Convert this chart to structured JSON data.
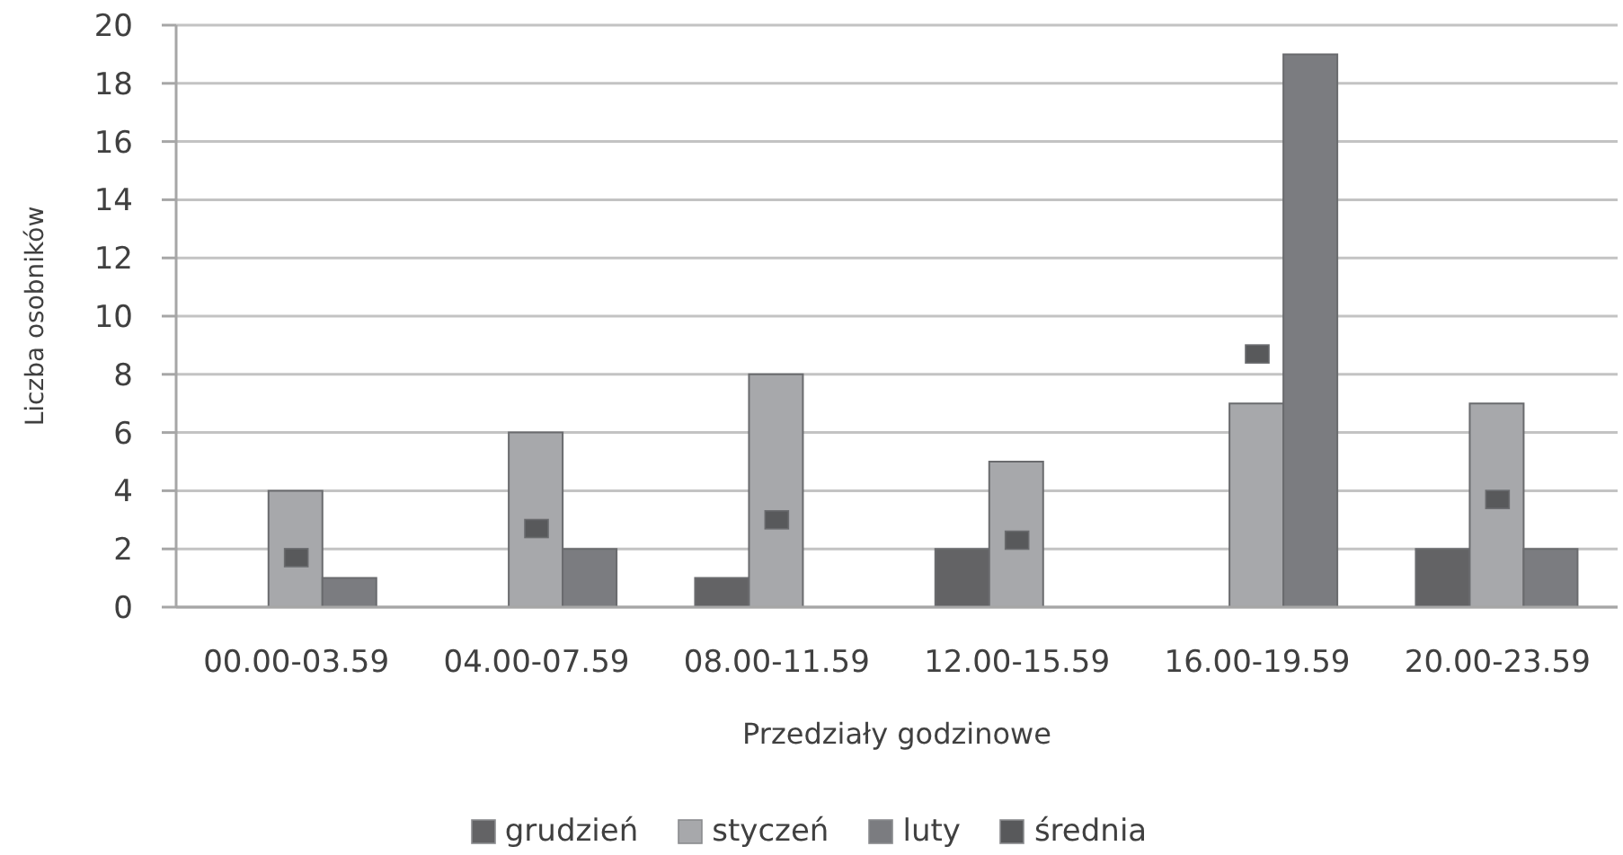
{
  "chart_data": {
    "type": "bar",
    "xlabel": "Przedziały godzinowe",
    "ylabel": "Liczba osobników",
    "categories": [
      "00.00-03.59",
      "04.00-07.59",
      "08.00-11.59",
      "12.00-15.59",
      "16.00-19.59",
      "20.00-23.59"
    ],
    "series": [
      {
        "name": "grudzień",
        "color": "#636365",
        "values": [
          0,
          0,
          1,
          2,
          0,
          2
        ]
      },
      {
        "name": "styczeń",
        "color": "#a7a8ab",
        "values": [
          4,
          6,
          8,
          5,
          7,
          7
        ]
      },
      {
        "name": "luty",
        "color": "#7b7c80",
        "values": [
          1,
          2,
          0,
          0,
          19,
          2
        ]
      },
      {
        "name": "średnia",
        "type": "scatter",
        "color": "#58595b",
        "values": [
          1.7,
          2.7,
          3,
          2.3,
          8.7,
          3.7
        ]
      }
    ],
    "marker": "square",
    "ylim": [
      0,
      20
    ],
    "yticks": [
      0,
      2,
      4,
      6,
      8,
      10,
      12,
      14,
      16,
      18,
      20
    ],
    "grid": "y",
    "legend": "bottom"
  }
}
